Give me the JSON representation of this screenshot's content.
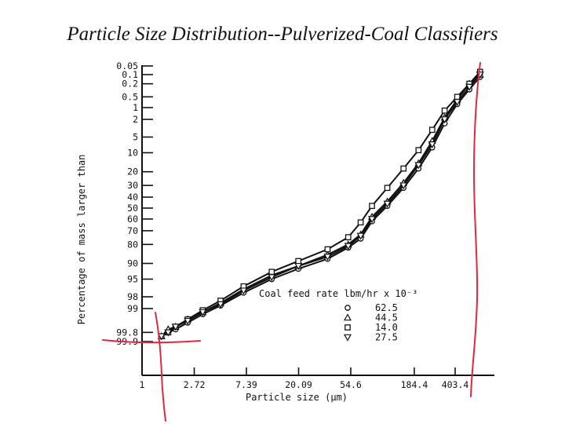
{
  "slide": {
    "title": "Particle Size Distribution--Pulverized-Coal Classifiers"
  },
  "chart_data": {
    "type": "line",
    "title": "",
    "xlabel": "Particle size (µm)",
    "ylabel": "Percentage of mass larger than",
    "x_scale": "log",
    "y_scale": "probability",
    "x_ticks": [
      "1",
      "2.72",
      "7.39",
      "20.09",
      "54.6",
      "184.4",
      "403.4"
    ],
    "x_tick_values": [
      1,
      2.72,
      7.39,
      20.09,
      54.6,
      184.4,
      403.4
    ],
    "y_ticks": [
      "0.05",
      "0.1",
      "0.2",
      "0.5",
      "1",
      "2",
      "5",
      "10",
      "20",
      "30",
      "40",
      "50",
      "60",
      "70",
      "80",
      "90",
      "95",
      "98",
      "99",
      "99.8",
      "99.9"
    ],
    "y_tick_values": [
      0.05,
      0.1,
      0.2,
      0.5,
      1,
      2,
      5,
      10,
      20,
      30,
      40,
      50,
      60,
      70,
      80,
      90,
      95,
      98,
      99,
      99.8,
      99.9
    ],
    "legend": {
      "title": "Coal feed rate lbm/hr x 10⁻³",
      "position": "lower-right",
      "entries": [
        {
          "symbol": "circle",
          "label": "62.5"
        },
        {
          "symbol": "triangle",
          "label": "44.5"
        },
        {
          "symbol": "square",
          "label": "14.0"
        },
        {
          "symbol": "triangle-down",
          "label": "27.5"
        }
      ]
    },
    "series": [
      {
        "name": "62.5",
        "marker": "circle",
        "x": [
          1.45,
          1.65,
          1.9,
          2.4,
          3.2,
          4.5,
          7,
          12,
          20,
          35,
          52,
          66,
          82,
          110,
          150,
          200,
          260,
          330,
          420,
          530,
          650
        ],
        "y": [
          99.85,
          99.8,
          99.75,
          99.6,
          99.3,
          98.8,
          97.5,
          95,
          92,
          88,
          82,
          76,
          62,
          48,
          32,
          18,
          8,
          2.5,
          0.8,
          0.3,
          0.12
        ]
      },
      {
        "name": "44.5",
        "marker": "triangle",
        "x": [
          1.45,
          1.65,
          1.9,
          2.4,
          3.2,
          4.5,
          7,
          12,
          20,
          35,
          52,
          66,
          82,
          110,
          150,
          200,
          260,
          330,
          420,
          530,
          650
        ],
        "y": [
          99.85,
          99.75,
          99.7,
          99.5,
          99.2,
          98.6,
          97,
          94,
          91,
          86,
          80,
          73,
          58,
          44,
          28,
          15,
          6,
          1.8,
          0.6,
          0.2,
          0.1
        ]
      },
      {
        "name": "14.0",
        "marker": "square",
        "x": [
          1.45,
          1.65,
          1.9,
          2.4,
          3.2,
          4.5,
          7,
          12,
          20,
          35,
          52,
          66,
          82,
          110,
          150,
          200,
          260,
          330,
          420,
          530,
          650
        ],
        "y": [
          99.85,
          99.8,
          99.7,
          99.5,
          99.1,
          98.4,
          96.5,
          93,
          89,
          83,
          75,
          63,
          48,
          32,
          18,
          9,
          3.5,
          1.2,
          0.5,
          0.2,
          0.08
        ]
      },
      {
        "name": "27.5",
        "marker": "triangle-down",
        "x": [
          1.45,
          1.65,
          1.9,
          2.4,
          3.2,
          4.5,
          7,
          12,
          20,
          35,
          52,
          66,
          82,
          110,
          150,
          200,
          260,
          330,
          420,
          530,
          650
        ],
        "y": [
          99.85,
          99.8,
          99.7,
          99.55,
          99.2,
          98.7,
          97.2,
          94.5,
          91,
          87,
          81,
          74,
          60,
          46,
          30,
          16,
          7,
          2,
          0.7,
          0.25,
          0.1
        ]
      }
    ],
    "annotation_color": "#e0283c"
  }
}
